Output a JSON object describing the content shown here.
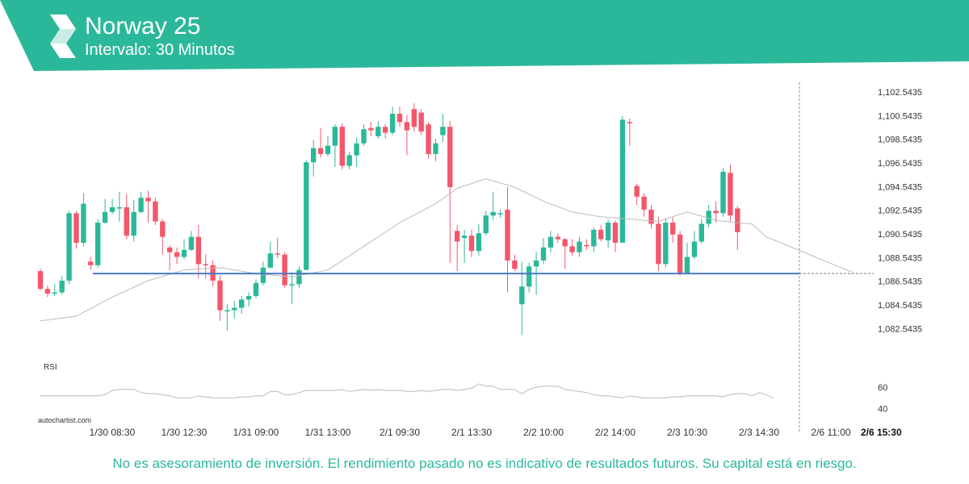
{
  "header": {
    "title": "Norway 25",
    "subtitle": "Intervalo: 30 Minutos"
  },
  "footer": {
    "disclaimer": "No es asesoramiento de inversión. El rendimiento pasado no es indicativo de resultados futuros. Su capital está en riesgo."
  },
  "colors": {
    "brand": "#2bb89a",
    "up": "#2bb89a",
    "down": "#f2576c",
    "support_line": "#4a7ac9",
    "ma_line": "#bbbbbb",
    "rsi_line": "#bbbbbb"
  },
  "chart_data": [
    {
      "type": "candlestick",
      "title": "Norway 25",
      "watermark": "autochartist.com",
      "ylim": [
        1081.0,
        1103.5
      ],
      "y_ticks": [
        "1,102.5435",
        "1,100.5435",
        "1,098.5435",
        "1,096.5435",
        "1,094.5435",
        "1,092.5435",
        "1,090.5435",
        "1,088.5435",
        "1,086.5435",
        "1,084.5435",
        "1,082.5435"
      ],
      "x_ticks": [
        "1/30 08:30",
        "1/30 12:30",
        "1/31 09:00",
        "1/31 13:00",
        "2/1 09:30",
        "2/1 13:30",
        "2/2 10:00",
        "2/2 14:00",
        "2/3 10:30",
        "2/3 14:30",
        "2/6 11:00",
        "2/6 15:30"
      ],
      "x_tick_index": [
        10,
        20,
        30,
        40,
        50,
        60,
        70,
        80,
        90,
        100,
        110,
        117
      ],
      "support_level": 1087.2,
      "candles": [
        [
          1087.4,
          1085.9,
          1087.6,
          1085.8
        ],
        [
          1085.9,
          1085.5,
          1086.2,
          1085.2
        ],
        [
          1085.5,
          1085.6,
          1086.3,
          1085.3
        ],
        [
          1085.6,
          1086.6,
          1087.0,
          1085.4
        ],
        [
          1086.6,
          1092.3,
          1092.5,
          1086.3
        ],
        [
          1092.3,
          1089.8,
          1092.5,
          1089.3
        ],
        [
          1089.8,
          1093.1,
          1094.0,
          1089.5
        ],
        [
          1088.2,
          1087.9,
          1088.6,
          1087.5
        ],
        [
          1087.9,
          1091.5,
          1091.8,
          1087.7
        ],
        [
          1091.5,
          1092.4,
          1093.5,
          1091.4
        ],
        [
          1092.4,
          1092.8,
          1093.5,
          1092.2
        ],
        [
          1092.8,
          1092.8,
          1094.1,
          1091.6
        ],
        [
          1092.8,
          1090.4,
          1093.9,
          1090.1
        ],
        [
          1090.4,
          1092.4,
          1093.4,
          1089.9
        ],
        [
          1092.4,
          1093.6,
          1094.1,
          1092.3
        ],
        [
          1093.6,
          1093.3,
          1094.2,
          1091.5
        ],
        [
          1093.3,
          1091.6,
          1093.6,
          1091.3
        ],
        [
          1091.6,
          1090.3,
          1091.8,
          1088.8
        ],
        [
          1089.4,
          1089.0,
          1089.6,
          1087.5
        ],
        [
          1089.0,
          1088.6,
          1089.4,
          1088.0
        ],
        [
          1088.6,
          1089.2,
          1090.1,
          1088.4
        ],
        [
          1089.2,
          1090.3,
          1090.8,
          1089.1
        ],
        [
          1090.3,
          1088.0,
          1091.3,
          1086.8
        ],
        [
          1088.0,
          1087.9,
          1088.8,
          1086.8
        ],
        [
          1087.9,
          1086.6,
          1088.3,
          1086.1
        ],
        [
          1086.6,
          1084.1,
          1087.0,
          1083.2
        ],
        [
          1084.1,
          1084.1,
          1084.6,
          1082.4
        ],
        [
          1084.1,
          1084.3,
          1084.9,
          1083.4
        ],
        [
          1084.3,
          1085.0,
          1085.3,
          1083.8
        ],
        [
          1085.0,
          1085.3,
          1085.6,
          1084.4
        ],
        [
          1085.3,
          1086.4,
          1086.7,
          1085.1
        ],
        [
          1086.4,
          1087.7,
          1088.2,
          1086.2
        ],
        [
          1087.7,
          1088.9,
          1089.9,
          1087.6
        ],
        [
          1088.9,
          1088.8,
          1090.2,
          1088.5
        ],
        [
          1088.8,
          1086.2,
          1089.0,
          1086.0
        ],
        [
          1086.2,
          1086.3,
          1087.3,
          1084.6
        ],
        [
          1086.3,
          1087.5,
          1087.8,
          1086.0
        ],
        [
          1087.5,
          1096.6,
          1096.8,
          1087.6
        ],
        [
          1096.6,
          1097.8,
          1098.5,
          1095.4
        ],
        [
          1097.8,
          1097.3,
          1099.5,
          1097.0
        ],
        [
          1097.3,
          1098.0,
          1098.8,
          1097.1
        ],
        [
          1098.0,
          1099.6,
          1099.8,
          1096.2
        ],
        [
          1099.6,
          1096.3,
          1099.9,
          1096.0
        ],
        [
          1096.3,
          1097.2,
          1097.5,
          1096.0
        ],
        [
          1097.2,
          1098.2,
          1098.7,
          1096.2
        ],
        [
          1098.2,
          1099.4,
          1099.8,
          1098.0
        ],
        [
          1099.5,
          1099.3,
          1100.0,
          1098.8
        ],
        [
          1098.8,
          1099.6,
          1100.1,
          1098.6
        ],
        [
          1099.6,
          1099.1,
          1099.8,
          1098.6
        ],
        [
          1099.1,
          1100.7,
          1101.3,
          1098.9
        ],
        [
          1100.7,
          1100.0,
          1101.3,
          1099.6
        ],
        [
          1100.0,
          1099.3,
          1100.6,
          1097.2
        ],
        [
          1101.1,
          1099.6,
          1101.6,
          1099.2
        ],
        [
          1100.8,
          1099.2,
          1101.1,
          1098.9
        ],
        [
          1099.8,
          1097.3,
          1100.0,
          1096.9
        ],
        [
          1097.3,
          1098.2,
          1098.6,
          1096.7
        ],
        [
          1098.9,
          1099.6,
          1100.7,
          1098.3
        ],
        [
          1099.6,
          1094.5,
          1100.1,
          1088.1
        ],
        [
          1090.8,
          1089.9,
          1091.3,
          1087.4
        ],
        [
          1090.2,
          1090.4,
          1090.9,
          1088.1
        ],
        [
          1090.4,
          1089.1,
          1090.9,
          1088.6
        ],
        [
          1089.1,
          1090.6,
          1091.4,
          1088.7
        ],
        [
          1090.6,
          1092.1,
          1092.5,
          1090.4
        ],
        [
          1092.1,
          1092.4,
          1094.1,
          1091.7
        ],
        [
          1092.3,
          1092.3,
          1092.6,
          1091.9
        ],
        [
          1092.6,
          1088.3,
          1094.5,
          1085.6
        ],
        [
          1088.3,
          1087.6,
          1088.8,
          1087.4
        ],
        [
          1084.6,
          1086.1,
          1088.2,
          1082.0
        ],
        [
          1086.1,
          1087.8,
          1088.1,
          1085.6
        ],
        [
          1087.8,
          1088.3,
          1089.0,
          1085.4
        ],
        [
          1088.3,
          1089.4,
          1090.2,
          1088.0
        ],
        [
          1089.4,
          1090.3,
          1090.8,
          1089.0
        ],
        [
          1090.3,
          1090.1,
          1090.6,
          1089.8
        ],
        [
          1090.1,
          1089.5,
          1090.2,
          1087.6
        ],
        [
          1089.5,
          1089.0,
          1090.1,
          1088.7
        ],
        [
          1089.0,
          1089.9,
          1090.3,
          1088.6
        ],
        [
          1089.6,
          1089.5,
          1090.1,
          1089.2
        ],
        [
          1089.5,
          1090.9,
          1091.1,
          1089.0
        ],
        [
          1090.9,
          1090.1,
          1091.3,
          1089.9
        ],
        [
          1090.0,
          1091.5,
          1091.8,
          1089.4
        ],
        [
          1091.5,
          1089.8,
          1091.7,
          1089.0
        ],
        [
          1089.8,
          1100.2,
          1100.5,
          1089.8
        ],
        [
          1100.0,
          1099.9,
          1100.3,
          1098.0
        ],
        [
          1094.6,
          1093.7,
          1094.8,
          1093.0
        ],
        [
          1093.7,
          1092.6,
          1094.0,
          1092.0
        ],
        [
          1092.6,
          1091.4,
          1093.0,
          1091.0
        ],
        [
          1091.4,
          1088.0,
          1092.0,
          1087.4
        ],
        [
          1088.0,
          1091.5,
          1091.8,
          1087.7
        ],
        [
          1091.5,
          1090.5,
          1092.0,
          1089.8
        ],
        [
          1090.5,
          1087.2,
          1090.8,
          1087.0
        ],
        [
          1087.2,
          1088.6,
          1089.8,
          1087.2
        ],
        [
          1088.6,
          1089.9,
          1090.8,
          1088.4
        ],
        [
          1089.9,
          1091.4,
          1091.8,
          1089.7
        ],
        [
          1091.4,
          1092.5,
          1093.0,
          1091.1
        ],
        [
          1092.5,
          1092.3,
          1093.3,
          1091.5
        ],
        [
          1092.3,
          1095.8,
          1096.1,
          1092.0
        ],
        [
          1095.7,
          1092.1,
          1096.4,
          1091.6
        ],
        [
          1092.7,
          1090.7,
          1092.9,
          1089.2
        ]
      ],
      "ma": [
        [
          0,
          1083.2
        ],
        [
          5,
          1083.6
        ],
        [
          10,
          1085.2
        ],
        [
          15,
          1086.6
        ],
        [
          20,
          1087.5
        ],
        [
          25,
          1087.7
        ],
        [
          30,
          1087.2
        ],
        [
          35,
          1086.9
        ],
        [
          40,
          1087.5
        ],
        [
          45,
          1089.5
        ],
        [
          50,
          1091.5
        ],
        [
          55,
          1093.1
        ],
        [
          58,
          1094.4
        ],
        [
          62,
          1095.2
        ],
        [
          66,
          1094.5
        ],
        [
          70,
          1093.3
        ],
        [
          74,
          1092.4
        ],
        [
          78,
          1092.0
        ],
        [
          82,
          1091.8
        ],
        [
          86,
          1091.6
        ],
        [
          90,
          1092.4
        ],
        [
          94,
          1091.7
        ],
        [
          97,
          1091.5
        ],
        [
          99,
          1091.4
        ],
        [
          101,
          1090.3
        ],
        [
          113,
          1087.3
        ]
      ],
      "rsi": {
        "label": "RSI",
        "ylim": [
          30,
          75
        ],
        "y_ticks": [
          "60",
          "40"
        ],
        "y_tick_values": [
          60,
          40
        ],
        "values": [
          52,
          52,
          52,
          52,
          52,
          52,
          52,
          52,
          52,
          53,
          57,
          58,
          58,
          58,
          55,
          54,
          54,
          53,
          52,
          50,
          50,
          50,
          52,
          51,
          50,
          50,
          50,
          50,
          51,
          51,
          52,
          52,
          56,
          56,
          53,
          53,
          55,
          57,
          57,
          57,
          57,
          57,
          58,
          56,
          57,
          58,
          57,
          58,
          57,
          57,
          57,
          56,
          56,
          57,
          56,
          57,
          58,
          58,
          57,
          58,
          59,
          63,
          61,
          61,
          58,
          58,
          58,
          54,
          58,
          60,
          61,
          61,
          61,
          58,
          57,
          56,
          55,
          53,
          52,
          52,
          51,
          50,
          52,
          51,
          50,
          50,
          50,
          50,
          51,
          51,
          52,
          52,
          52,
          52,
          52,
          51,
          53,
          54,
          54,
          52,
          55,
          53,
          50
        ]
      }
    }
  ]
}
